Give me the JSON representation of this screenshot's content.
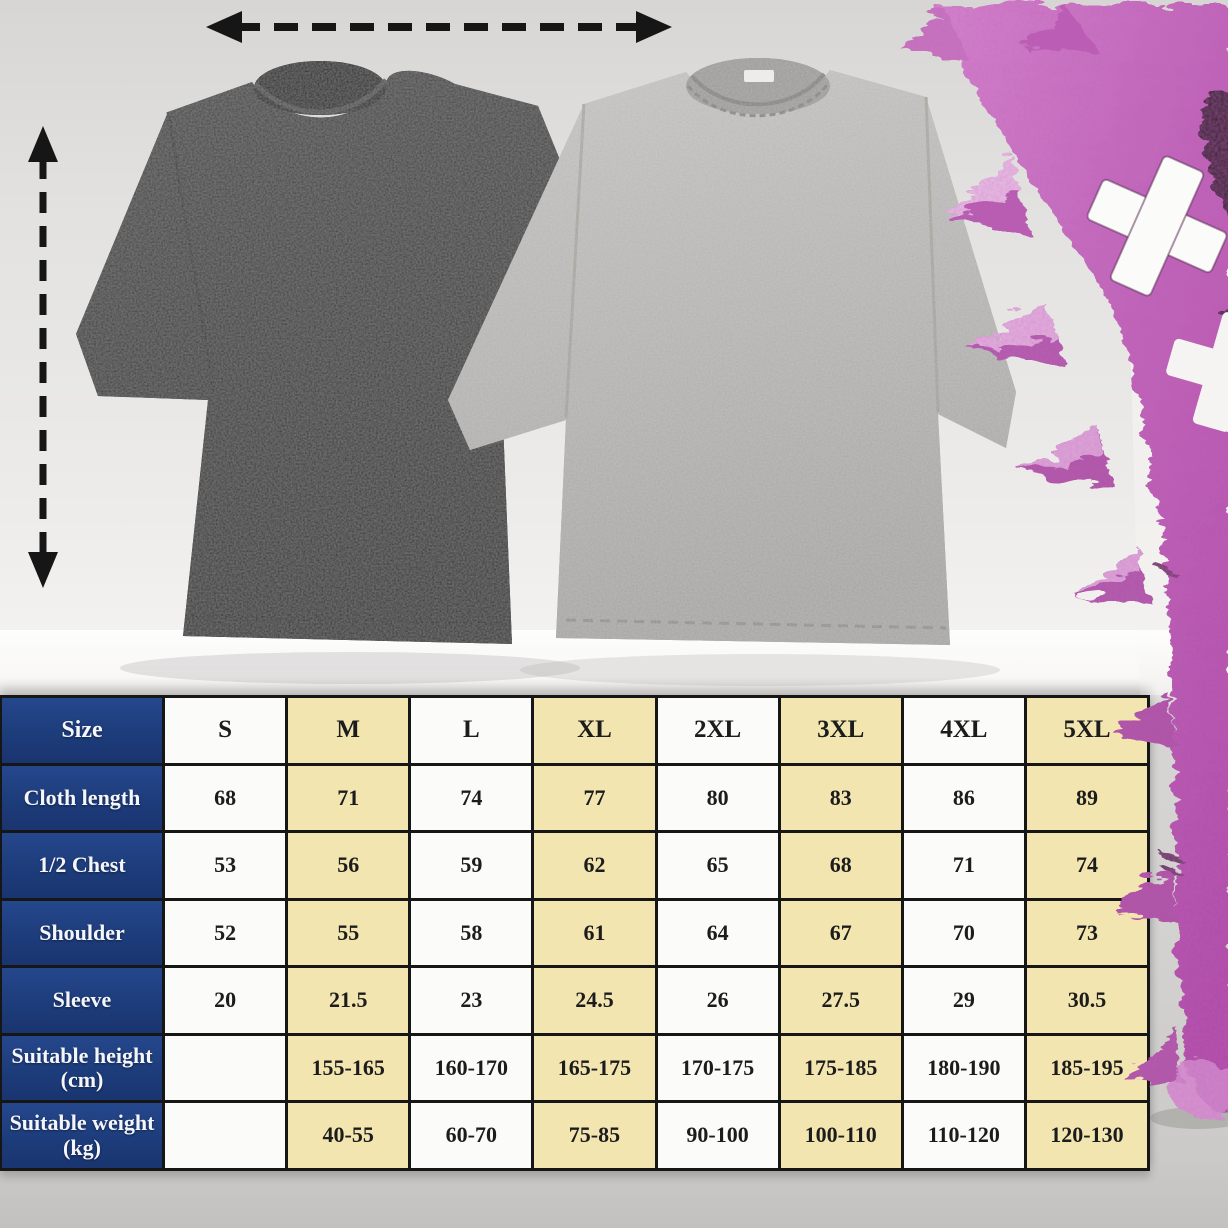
{
  "page": {
    "description": "E-commerce product image: two oversized washed t-shirts with measurement arrows, a pink furry mascot, and a size chart table",
    "background_colors": {
      "photo_top": "#d7d6d4",
      "photo_bottom": "#f7f6f4",
      "lower_strip": "#c2c1bf"
    }
  },
  "photo": {
    "icons": {
      "width_arrow": "horizontal double-headed dashed measurement arrow",
      "length_arrow": "vertical double-headed dashed measurement arrow",
      "monster_eye_x": "white X cross eye",
      "monster_eye_x_partial": "white X cross (clipped at right edge)"
    },
    "items": {
      "dark_shirt": "washed black oversized t-shirt",
      "light_shirt": "washed grey oversized t-shirt",
      "mascot": "pink furry spiked monster"
    },
    "colors": {
      "arrow": "#161616",
      "dark_shirt": "#3c3c3c",
      "light_shirt": "#b5b4b2",
      "mascot_fur": "#c268bc"
    }
  },
  "chart_data": {
    "type": "table",
    "title": "T-shirt size chart",
    "columns": [
      "Size",
      "S",
      "M",
      "L",
      "XL",
      "2XL",
      "3XL",
      "4XL",
      "5XL"
    ],
    "rows": [
      {
        "label": "Cloth length",
        "values": [
          "68",
          "71",
          "74",
          "77",
          "80",
          "83",
          "86",
          "89"
        ]
      },
      {
        "label": "1/2 Chest",
        "values": [
          "53",
          "56",
          "59",
          "62",
          "65",
          "68",
          "71",
          "74"
        ]
      },
      {
        "label": "Shoulder",
        "values": [
          "52",
          "55",
          "58",
          "61",
          "64",
          "67",
          "70",
          "73"
        ]
      },
      {
        "label": "Sleeve",
        "values": [
          "20",
          "21.5",
          "23",
          "24.5",
          "26",
          "27.5",
          "29",
          "30.5"
        ]
      },
      {
        "label": "Suitable height (cm)",
        "values": [
          "",
          "155-165",
          "160-170",
          "165-175",
          "170-175",
          "175-185",
          "180-190",
          "185-195"
        ]
      },
      {
        "label": "Suitable weight (kg)",
        "values": [
          "",
          "40-55",
          "60-70",
          "75-85",
          "90-100",
          "100-110",
          "110-120",
          "120-130"
        ]
      }
    ],
    "style": {
      "header_col_bg": "#1e3d7c",
      "header_text": "#ffffff",
      "alt_col_bg": "#f2e5b0",
      "col_bg": "#fbfbfa",
      "grid_color": "#161616"
    }
  }
}
